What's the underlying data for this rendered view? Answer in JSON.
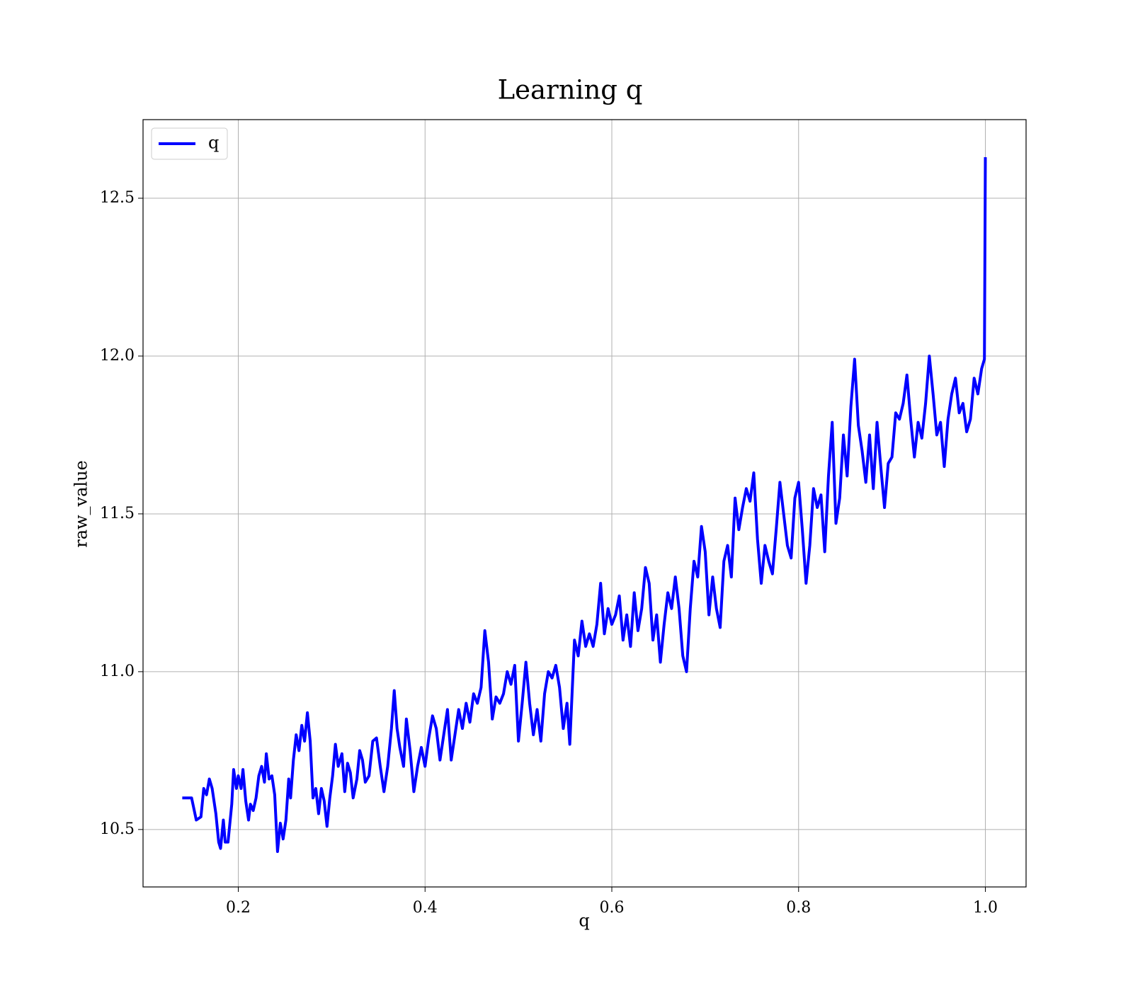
{
  "chart_data": {
    "type": "line",
    "title": "Learning q",
    "x_label": "q",
    "y_label": "raw_value",
    "x": [
      0.14,
      0.15,
      0.155,
      0.16,
      0.163,
      0.166,
      0.169,
      0.172,
      0.176,
      0.179,
      0.181,
      0.184,
      0.186,
      0.189,
      0.193,
      0.195,
      0.198,
      0.2,
      0.203,
      0.205,
      0.208,
      0.211,
      0.213,
      0.216,
      0.219,
      0.222,
      0.225,
      0.228,
      0.23,
      0.233,
      0.236,
      0.239,
      0.242,
      0.245,
      0.248,
      0.251,
      0.254,
      0.256,
      0.259,
      0.262,
      0.265,
      0.268,
      0.271,
      0.274,
      0.277,
      0.28,
      0.283,
      0.286,
      0.289,
      0.292,
      0.295,
      0.298,
      0.301,
      0.304,
      0.307,
      0.311,
      0.314,
      0.317,
      0.32,
      0.323,
      0.327,
      0.33,
      0.333,
      0.336,
      0.34,
      0.344,
      0.348,
      0.352,
      0.356,
      0.36,
      0.364,
      0.367,
      0.37,
      0.373,
      0.377,
      0.38,
      0.384,
      0.388,
      0.392,
      0.396,
      0.4,
      0.404,
      0.408,
      0.412,
      0.416,
      0.42,
      0.424,
      0.428,
      0.432,
      0.436,
      0.44,
      0.444,
      0.448,
      0.452,
      0.456,
      0.46,
      0.464,
      0.468,
      0.472,
      0.476,
      0.48,
      0.484,
      0.488,
      0.492,
      0.496,
      0.5,
      0.504,
      0.508,
      0.512,
      0.516,
      0.52,
      0.524,
      0.528,
      0.532,
      0.536,
      0.54,
      0.544,
      0.548,
      0.552,
      0.555,
      0.56,
      0.564,
      0.568,
      0.572,
      0.576,
      0.58,
      0.584,
      0.588,
      0.592,
      0.596,
      0.6,
      0.604,
      0.608,
      0.612,
      0.616,
      0.62,
      0.624,
      0.628,
      0.632,
      0.636,
      0.64,
      0.644,
      0.648,
      0.652,
      0.656,
      0.66,
      0.664,
      0.668,
      0.672,
      0.676,
      0.68,
      0.684,
      0.688,
      0.692,
      0.696,
      0.7,
      0.704,
      0.708,
      0.712,
      0.716,
      0.72,
      0.724,
      0.728,
      0.732,
      0.736,
      0.74,
      0.744,
      0.748,
      0.752,
      0.756,
      0.76,
      0.764,
      0.768,
      0.772,
      0.776,
      0.78,
      0.784,
      0.788,
      0.792,
      0.796,
      0.8,
      0.804,
      0.808,
      0.812,
      0.816,
      0.82,
      0.824,
      0.828,
      0.832,
      0.836,
      0.84,
      0.844,
      0.848,
      0.852,
      0.856,
      0.86,
      0.864,
      0.868,
      0.872,
      0.876,
      0.88,
      0.884,
      0.888,
      0.892,
      0.896,
      0.9,
      0.904,
      0.908,
      0.912,
      0.916,
      0.92,
      0.924,
      0.928,
      0.932,
      0.936,
      0.94,
      0.944,
      0.948,
      0.952,
      0.956,
      0.96,
      0.964,
      0.968,
      0.972,
      0.976,
      0.98,
      0.984,
      0.988,
      0.992,
      0.996,
      0.999,
      1.0
    ],
    "series": [
      {
        "name": "q",
        "color": "#0000ff",
        "values": [
          10.6,
          10.6,
          10.53,
          10.54,
          10.63,
          10.61,
          10.66,
          10.63,
          10.55,
          10.46,
          10.44,
          10.53,
          10.46,
          10.46,
          10.58,
          10.69,
          10.63,
          10.67,
          10.63,
          10.69,
          10.59,
          10.53,
          10.58,
          10.56,
          10.6,
          10.67,
          10.7,
          10.65,
          10.74,
          10.66,
          10.67,
          10.61,
          10.43,
          10.52,
          10.47,
          10.53,
          10.66,
          10.6,
          10.72,
          10.8,
          10.75,
          10.83,
          10.78,
          10.87,
          10.78,
          10.6,
          10.63,
          10.55,
          10.63,
          10.59,
          10.51,
          10.6,
          10.67,
          10.77,
          10.7,
          10.74,
          10.62,
          10.71,
          10.68,
          10.6,
          10.66,
          10.75,
          10.72,
          10.65,
          10.67,
          10.78,
          10.79,
          10.7,
          10.62,
          10.7,
          10.82,
          10.94,
          10.82,
          10.76,
          10.7,
          10.85,
          10.75,
          10.62,
          10.7,
          10.76,
          10.7,
          10.79,
          10.86,
          10.82,
          10.72,
          10.8,
          10.88,
          10.72,
          10.8,
          10.88,
          10.82,
          10.9,
          10.84,
          10.93,
          10.9,
          10.95,
          11.13,
          11.03,
          10.85,
          10.92,
          10.9,
          10.93,
          11.0,
          10.96,
          11.02,
          10.78,
          10.9,
          11.03,
          10.9,
          10.8,
          10.88,
          10.78,
          10.93,
          11.0,
          10.98,
          11.02,
          10.95,
          10.82,
          10.9,
          10.77,
          11.1,
          11.05,
          11.16,
          11.08,
          11.12,
          11.08,
          11.15,
          11.28,
          11.12,
          11.2,
          11.15,
          11.18,
          11.24,
          11.1,
          11.18,
          11.08,
          11.25,
          11.13,
          11.2,
          11.33,
          11.28,
          11.1,
          11.18,
          11.03,
          11.15,
          11.25,
          11.2,
          11.3,
          11.2,
          11.05,
          11.0,
          11.2,
          11.35,
          11.3,
          11.46,
          11.38,
          11.18,
          11.3,
          11.2,
          11.14,
          11.35,
          11.4,
          11.3,
          11.55,
          11.45,
          11.52,
          11.58,
          11.54,
          11.63,
          11.42,
          11.28,
          11.4,
          11.35,
          11.31,
          11.45,
          11.6,
          11.5,
          11.4,
          11.36,
          11.55,
          11.6,
          11.45,
          11.28,
          11.4,
          11.58,
          11.52,
          11.56,
          11.38,
          11.62,
          11.79,
          11.47,
          11.55,
          11.75,
          11.62,
          11.84,
          11.99,
          11.78,
          11.7,
          11.6,
          11.75,
          11.58,
          11.79,
          11.65,
          11.52,
          11.66,
          11.68,
          11.82,
          11.8,
          11.85,
          11.94,
          11.8,
          11.68,
          11.79,
          11.74,
          11.85,
          12.0,
          11.88,
          11.75,
          11.79,
          11.65,
          11.8,
          11.88,
          11.93,
          11.82,
          11.85,
          11.76,
          11.8,
          11.93,
          11.88,
          11.96,
          11.99,
          12.63
        ]
      }
    ],
    "xlim": [
      0.098,
      1.0436
    ],
    "ylim": [
      10.318,
      12.749
    ],
    "xticks": [
      0.2,
      0.4,
      0.6,
      0.8,
      {
        "value": 1.0,
        "label": "1.0"
      }
    ],
    "yticks": [
      10.5,
      {
        "value": 11.0,
        "label": "11.0"
      },
      11.5,
      {
        "value": 12.0,
        "label": "12.0"
      },
      12.5
    ],
    "grid": true,
    "legend": "upper left"
  }
}
